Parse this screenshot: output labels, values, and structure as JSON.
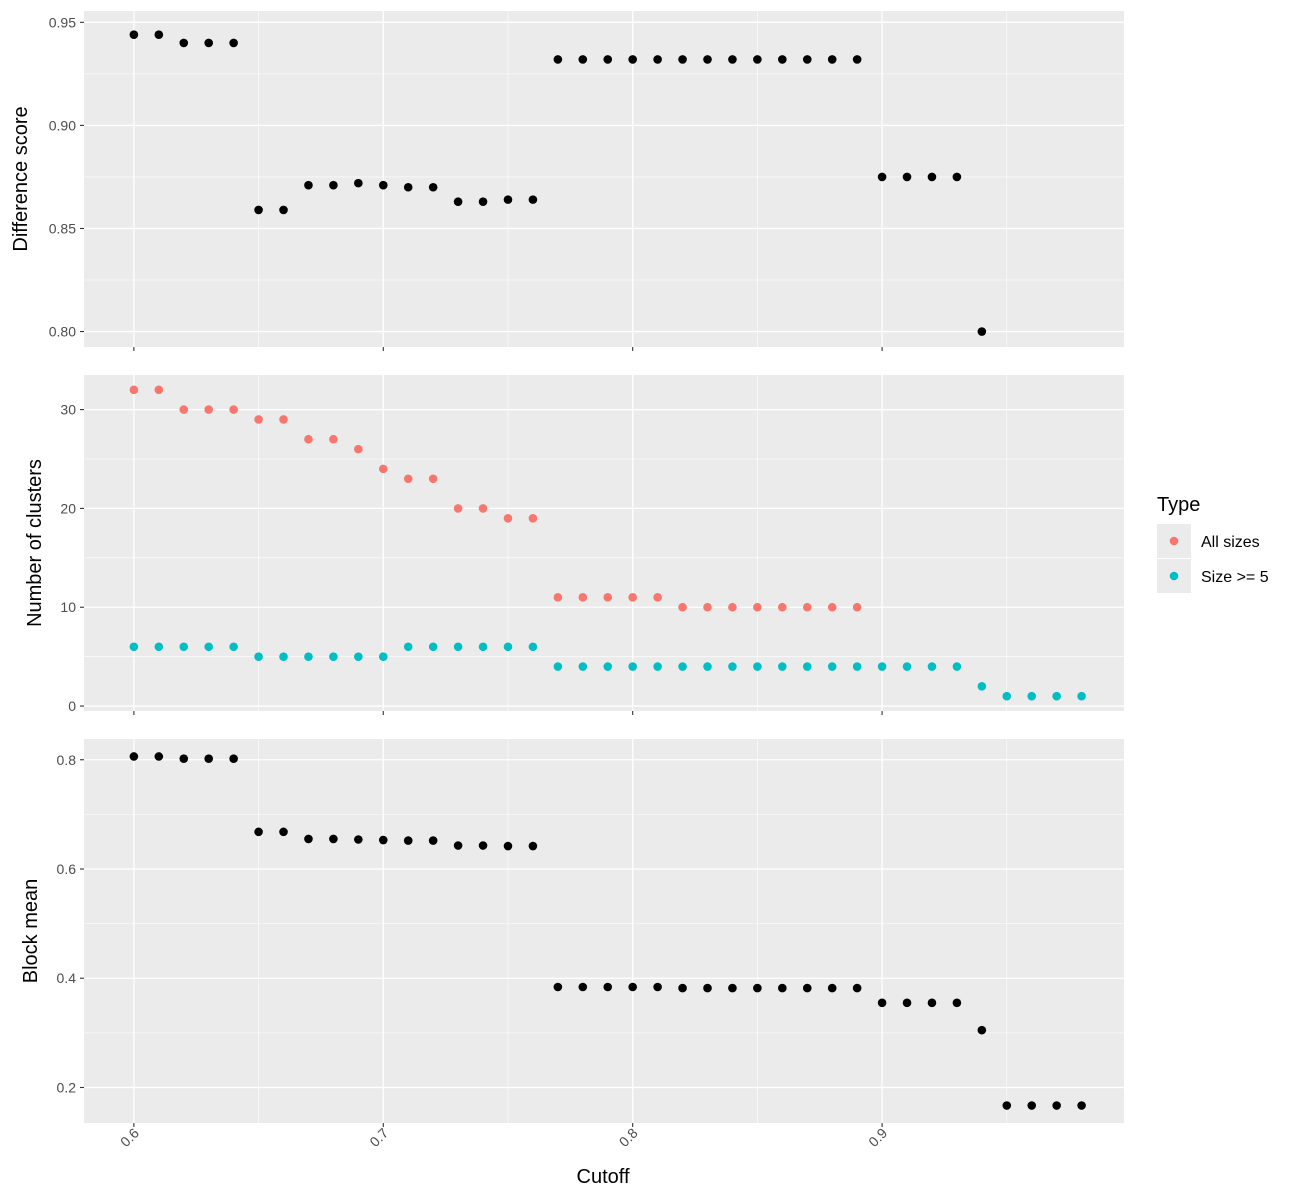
{
  "chart_data": {
    "type": "scatter",
    "xlabel": "Cutoff",
    "x_ticks": [
      "0.6",
      "0.7",
      "0.8",
      "0.9"
    ],
    "x_tick_values": [
      0.6,
      0.7,
      0.8,
      0.9
    ],
    "xlim": [
      0.58,
      0.997
    ],
    "legend": {
      "title": "Type",
      "placement": "right",
      "entries": [
        {
          "label": "All sizes",
          "color": "#F8766D"
        },
        {
          "label": "Size >= 5",
          "color": "#00BFC4"
        }
      ]
    },
    "panels": [
      {
        "ylabel": "Difference score",
        "ylim": [
          0.7925,
          0.9555
        ],
        "y_ticks": [
          "0.80",
          "0.85",
          "0.90",
          "0.95"
        ],
        "y_tick_values": [
          0.8,
          0.85,
          0.9,
          0.95
        ],
        "series": [
          {
            "color": "#000000",
            "x": [
              0.6,
              0.61,
              0.62,
              0.63,
              0.64,
              0.65,
              0.66,
              0.67,
              0.68,
              0.69,
              0.7,
              0.71,
              0.72,
              0.73,
              0.74,
              0.75,
              0.76,
              0.77,
              0.78,
              0.79,
              0.8,
              0.81,
              0.82,
              0.83,
              0.84,
              0.85,
              0.86,
              0.87,
              0.88,
              0.89,
              0.9,
              0.91,
              0.92,
              0.93,
              0.94
            ],
            "y": [
              0.944,
              0.944,
              0.94,
              0.94,
              0.94,
              0.859,
              0.859,
              0.871,
              0.871,
              0.872,
              0.871,
              0.87,
              0.87,
              0.863,
              0.863,
              0.864,
              0.864,
              0.932,
              0.932,
              0.932,
              0.932,
              0.932,
              0.932,
              0.932,
              0.932,
              0.932,
              0.932,
              0.932,
              0.932,
              0.932,
              0.875,
              0.875,
              0.875,
              0.875,
              0.8
            ]
          }
        ]
      },
      {
        "ylabel": "Number of clusters",
        "ylim": [
          -0.5,
          33.5
        ],
        "y_ticks": [
          "0",
          "10",
          "20",
          "30"
        ],
        "y_tick_values": [
          0,
          10,
          20,
          30
        ],
        "series": [
          {
            "name": "All sizes",
            "color": "#F8766D",
            "x": [
              0.6,
              0.61,
              0.62,
              0.63,
              0.64,
              0.65,
              0.66,
              0.67,
              0.68,
              0.69,
              0.7,
              0.71,
              0.72,
              0.73,
              0.74,
              0.75,
              0.76,
              0.77,
              0.78,
              0.79,
              0.8,
              0.81,
              0.82,
              0.83,
              0.84,
              0.85,
              0.86,
              0.87,
              0.88,
              0.89
            ],
            "y": [
              32,
              32,
              30,
              30,
              30,
              29,
              29,
              27,
              27,
              26,
              24,
              23,
              23,
              20,
              20,
              19,
              19,
              11,
              11,
              11,
              11,
              11,
              10,
              10,
              10,
              10,
              10,
              10,
              10,
              10
            ]
          },
          {
            "name": "Size >= 5",
            "color": "#00BFC4",
            "x": [
              0.6,
              0.61,
              0.62,
              0.63,
              0.64,
              0.65,
              0.66,
              0.67,
              0.68,
              0.69,
              0.7,
              0.71,
              0.72,
              0.73,
              0.74,
              0.75,
              0.76,
              0.77,
              0.78,
              0.79,
              0.8,
              0.81,
              0.82,
              0.83,
              0.84,
              0.85,
              0.86,
              0.87,
              0.88,
              0.89,
              0.9,
              0.91,
              0.92,
              0.93,
              0.94,
              0.95,
              0.96,
              0.97,
              0.98
            ],
            "y": [
              6,
              6,
              6,
              6,
              6,
              5,
              5,
              5,
              5,
              5,
              5,
              6,
              6,
              6,
              6,
              6,
              6,
              4,
              4,
              4,
              4,
              4,
              4,
              4,
              4,
              4,
              4,
              4,
              4,
              4,
              4,
              4,
              4,
              4,
              2,
              1,
              1,
              1,
              1
            ]
          }
        ]
      },
      {
        "ylabel": "Block mean",
        "ylim": [
          0.135,
          0.838
        ],
        "y_ticks": [
          "0.2",
          "0.4",
          "0.6",
          "0.8"
        ],
        "y_tick_values": [
          0.2,
          0.4,
          0.6,
          0.8
        ],
        "series": [
          {
            "color": "#000000",
            "x": [
              0.6,
              0.61,
              0.62,
              0.63,
              0.64,
              0.65,
              0.66,
              0.67,
              0.68,
              0.69,
              0.7,
              0.71,
              0.72,
              0.73,
              0.74,
              0.75,
              0.76,
              0.77,
              0.78,
              0.79,
              0.8,
              0.81,
              0.82,
              0.83,
              0.84,
              0.85,
              0.86,
              0.87,
              0.88,
              0.89,
              0.9,
              0.91,
              0.92,
              0.93,
              0.94,
              0.95,
              0.96,
              0.97,
              0.98
            ],
            "y": [
              0.806,
              0.806,
              0.802,
              0.802,
              0.802,
              0.668,
              0.668,
              0.655,
              0.655,
              0.654,
              0.653,
              0.652,
              0.652,
              0.643,
              0.643,
              0.642,
              0.642,
              0.384,
              0.384,
              0.384,
              0.384,
              0.384,
              0.382,
              0.382,
              0.382,
              0.382,
              0.382,
              0.382,
              0.382,
              0.382,
              0.355,
              0.355,
              0.355,
              0.355,
              0.305,
              0.167,
              0.167,
              0.167,
              0.167
            ]
          }
        ]
      }
    ]
  }
}
